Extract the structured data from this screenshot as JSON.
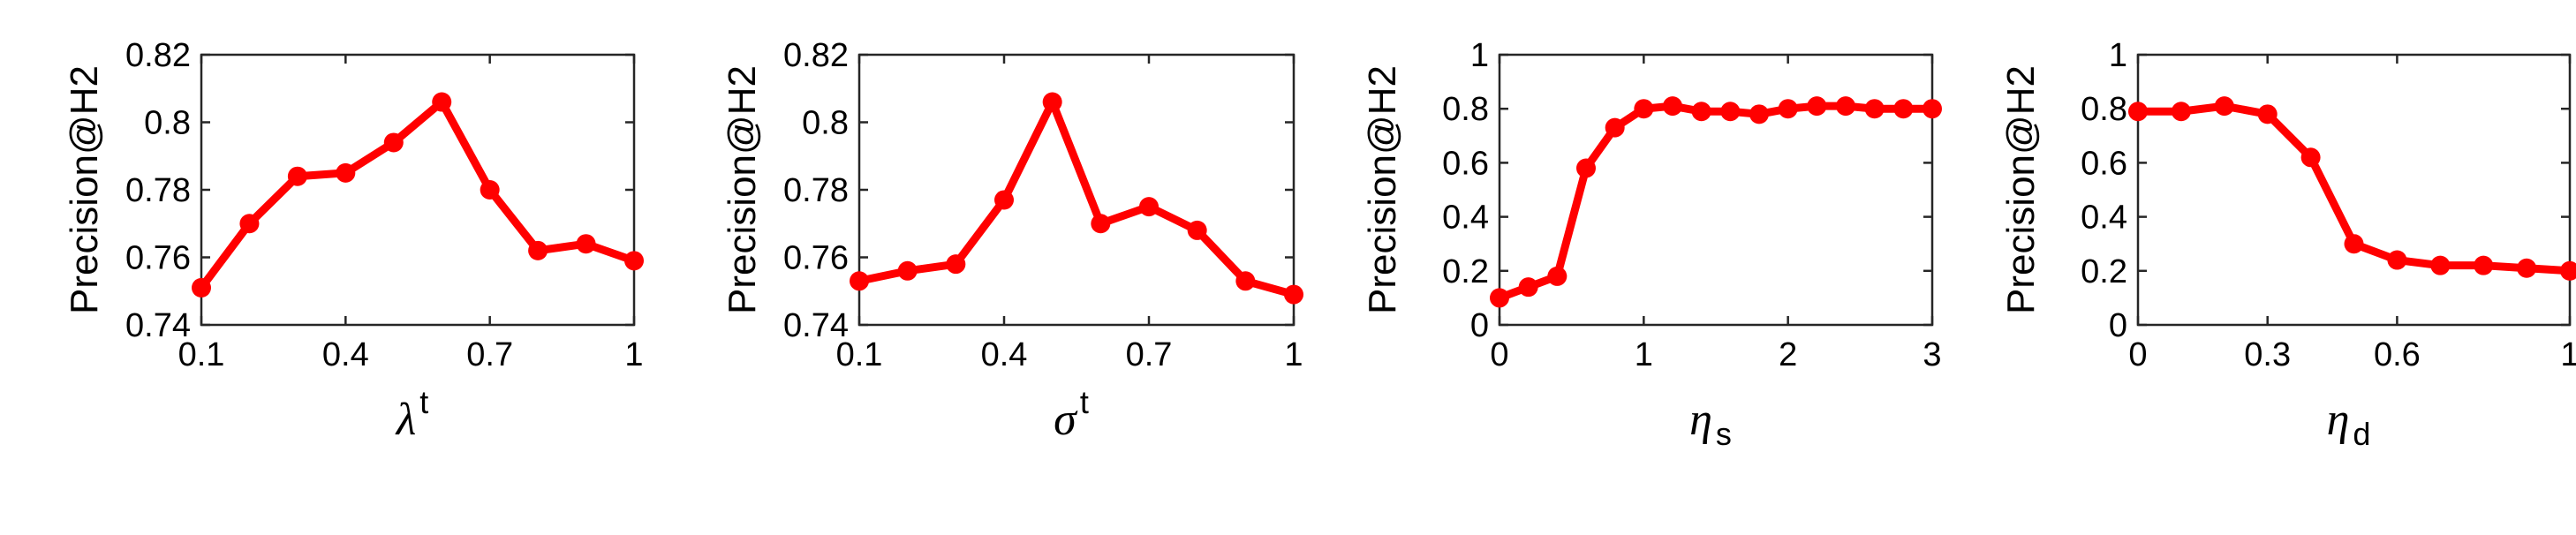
{
  "chart_data": [
    {
      "type": "line",
      "ylabel": "Precision@H2",
      "xlabel_symbol": "λ",
      "xlabel_script": "t",
      "xlabel_script_pos": "sup",
      "xlim": [
        0.1,
        1
      ],
      "ylim": [
        0.74,
        0.82
      ],
      "xticks": [
        "0.1",
        "0.4",
        "0.7",
        "1"
      ],
      "yticks": [
        "0.74",
        "0.76",
        "0.78",
        "0.8",
        "0.82"
      ],
      "grid": false,
      "color": "#ff0000",
      "series": [
        {
          "x": [
            0.1,
            0.2,
            0.3,
            0.4,
            0.5,
            0.6,
            0.7,
            0.8,
            0.9,
            1.0
          ],
          "y": [
            0.751,
            0.77,
            0.784,
            0.785,
            0.794,
            0.806,
            0.78,
            0.762,
            0.764,
            0.759
          ]
        }
      ]
    },
    {
      "type": "line",
      "ylabel": "Precision@H2",
      "xlabel_symbol": "σ",
      "xlabel_script": "t",
      "xlabel_script_pos": "sup",
      "xlim": [
        0.1,
        1
      ],
      "ylim": [
        0.74,
        0.82
      ],
      "xticks": [
        "0.1",
        "0.4",
        "0.7",
        "1"
      ],
      "yticks": [
        "0.74",
        "0.76",
        "0.78",
        "0.8",
        "0.82"
      ],
      "grid": false,
      "color": "#ff0000",
      "series": [
        {
          "x": [
            0.1,
            0.2,
            0.3,
            0.4,
            0.5,
            0.6,
            0.7,
            0.8,
            0.9,
            1.0
          ],
          "y": [
            0.753,
            0.756,
            0.758,
            0.777,
            0.806,
            0.77,
            0.775,
            0.768,
            0.753,
            0.749
          ]
        }
      ]
    },
    {
      "type": "line",
      "ylabel": "Precision@H2",
      "xlabel_symbol": "η",
      "xlabel_script": "s",
      "xlabel_script_pos": "sub",
      "xlim": [
        0,
        3
      ],
      "ylim": [
        0,
        1
      ],
      "xticks": [
        "0",
        "1",
        "2",
        "3"
      ],
      "yticks": [
        "0",
        "0.2",
        "0.4",
        "0.6",
        "0.8",
        "1"
      ],
      "grid": false,
      "color": "#ff0000",
      "series": [
        {
          "x": [
            0,
            0.2,
            0.4,
            0.6,
            0.8,
            1.0,
            1.2,
            1.4,
            1.6,
            1.8,
            2.0,
            2.2,
            2.4,
            2.6,
            2.8,
            3.0
          ],
          "y": [
            0.1,
            0.14,
            0.18,
            0.58,
            0.73,
            0.8,
            0.81,
            0.79,
            0.79,
            0.78,
            0.8,
            0.81,
            0.81,
            0.8,
            0.8,
            0.8
          ]
        }
      ]
    },
    {
      "type": "line",
      "ylabel": "Precision@H2",
      "xlabel_symbol": "η",
      "xlabel_script": "d",
      "xlabel_script_pos": "sub",
      "xlim": [
        0,
        1
      ],
      "ylim": [
        0,
        1
      ],
      "xticks": [
        "0",
        "0.3",
        "0.6",
        "1"
      ],
      "yticks": [
        "0",
        "0.2",
        "0.4",
        "0.6",
        "0.8",
        "1"
      ],
      "grid": false,
      "color": "#ff0000",
      "series": [
        {
          "x": [
            0,
            0.1,
            0.2,
            0.3,
            0.4,
            0.5,
            0.6,
            0.7,
            0.8,
            0.9,
            1.0
          ],
          "y": [
            0.79,
            0.79,
            0.81,
            0.78,
            0.62,
            0.3,
            0.24,
            0.22,
            0.22,
            0.21,
            0.2
          ]
        }
      ]
    }
  ]
}
